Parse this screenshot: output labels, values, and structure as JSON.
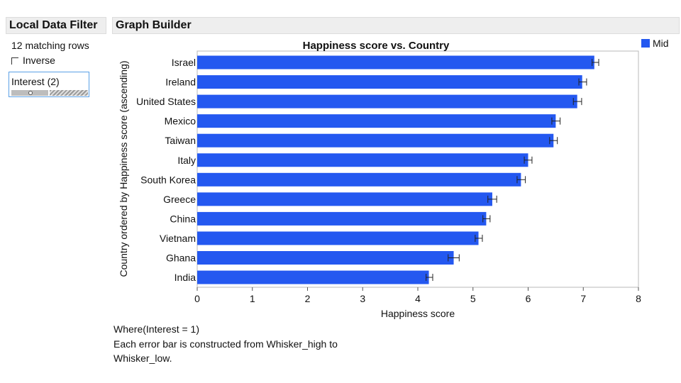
{
  "filter_panel": {
    "title": "Local Data Filter",
    "matching_rows": "12 matching rows",
    "inverse_label": "Inverse",
    "interest_label": "Interest (2)"
  },
  "graph_panel": {
    "title": "Graph Builder"
  },
  "notes": {
    "line1": "Where(Interest = 1)",
    "line2": "Each error bar is constructed from Whisker_high to",
    "line3": "Whisker_low."
  },
  "colors": {
    "bar": "#2458f0",
    "panel_header_bg": "#eeeeee",
    "filter_border": "#5aa0e6"
  },
  "chart_data": {
    "type": "bar",
    "orientation": "horizontal",
    "title": "Happiness score vs. Country",
    "xlabel": "Happiness score",
    "ylabel": "Country ordered by Happiness score (ascending)",
    "xlim": [
      0,
      8
    ],
    "xticks": [
      0,
      1,
      2,
      3,
      4,
      5,
      6,
      7,
      8
    ],
    "grid": false,
    "legend_position": "top-right",
    "categories": [
      "Israel",
      "Ireland",
      "United States",
      "Mexico",
      "Taiwan",
      "Italy",
      "South Korea",
      "Greece",
      "China",
      "Vietnam",
      "Ghana",
      "India"
    ],
    "series": [
      {
        "name": "Mid",
        "color": "#2458f0",
        "values": [
          7.2,
          6.98,
          6.89,
          6.5,
          6.46,
          6.0,
          5.87,
          5.35,
          5.24,
          5.1,
          4.65,
          4.2
        ],
        "whisker_low": [
          7.16,
          6.92,
          6.82,
          6.43,
          6.39,
          5.93,
          5.8,
          5.27,
          5.18,
          5.04,
          4.55,
          4.15
        ],
        "whisker_high": [
          7.28,
          7.06,
          6.97,
          6.58,
          6.53,
          6.07,
          5.95,
          5.43,
          5.31,
          5.17,
          4.75,
          4.27
        ]
      }
    ]
  }
}
